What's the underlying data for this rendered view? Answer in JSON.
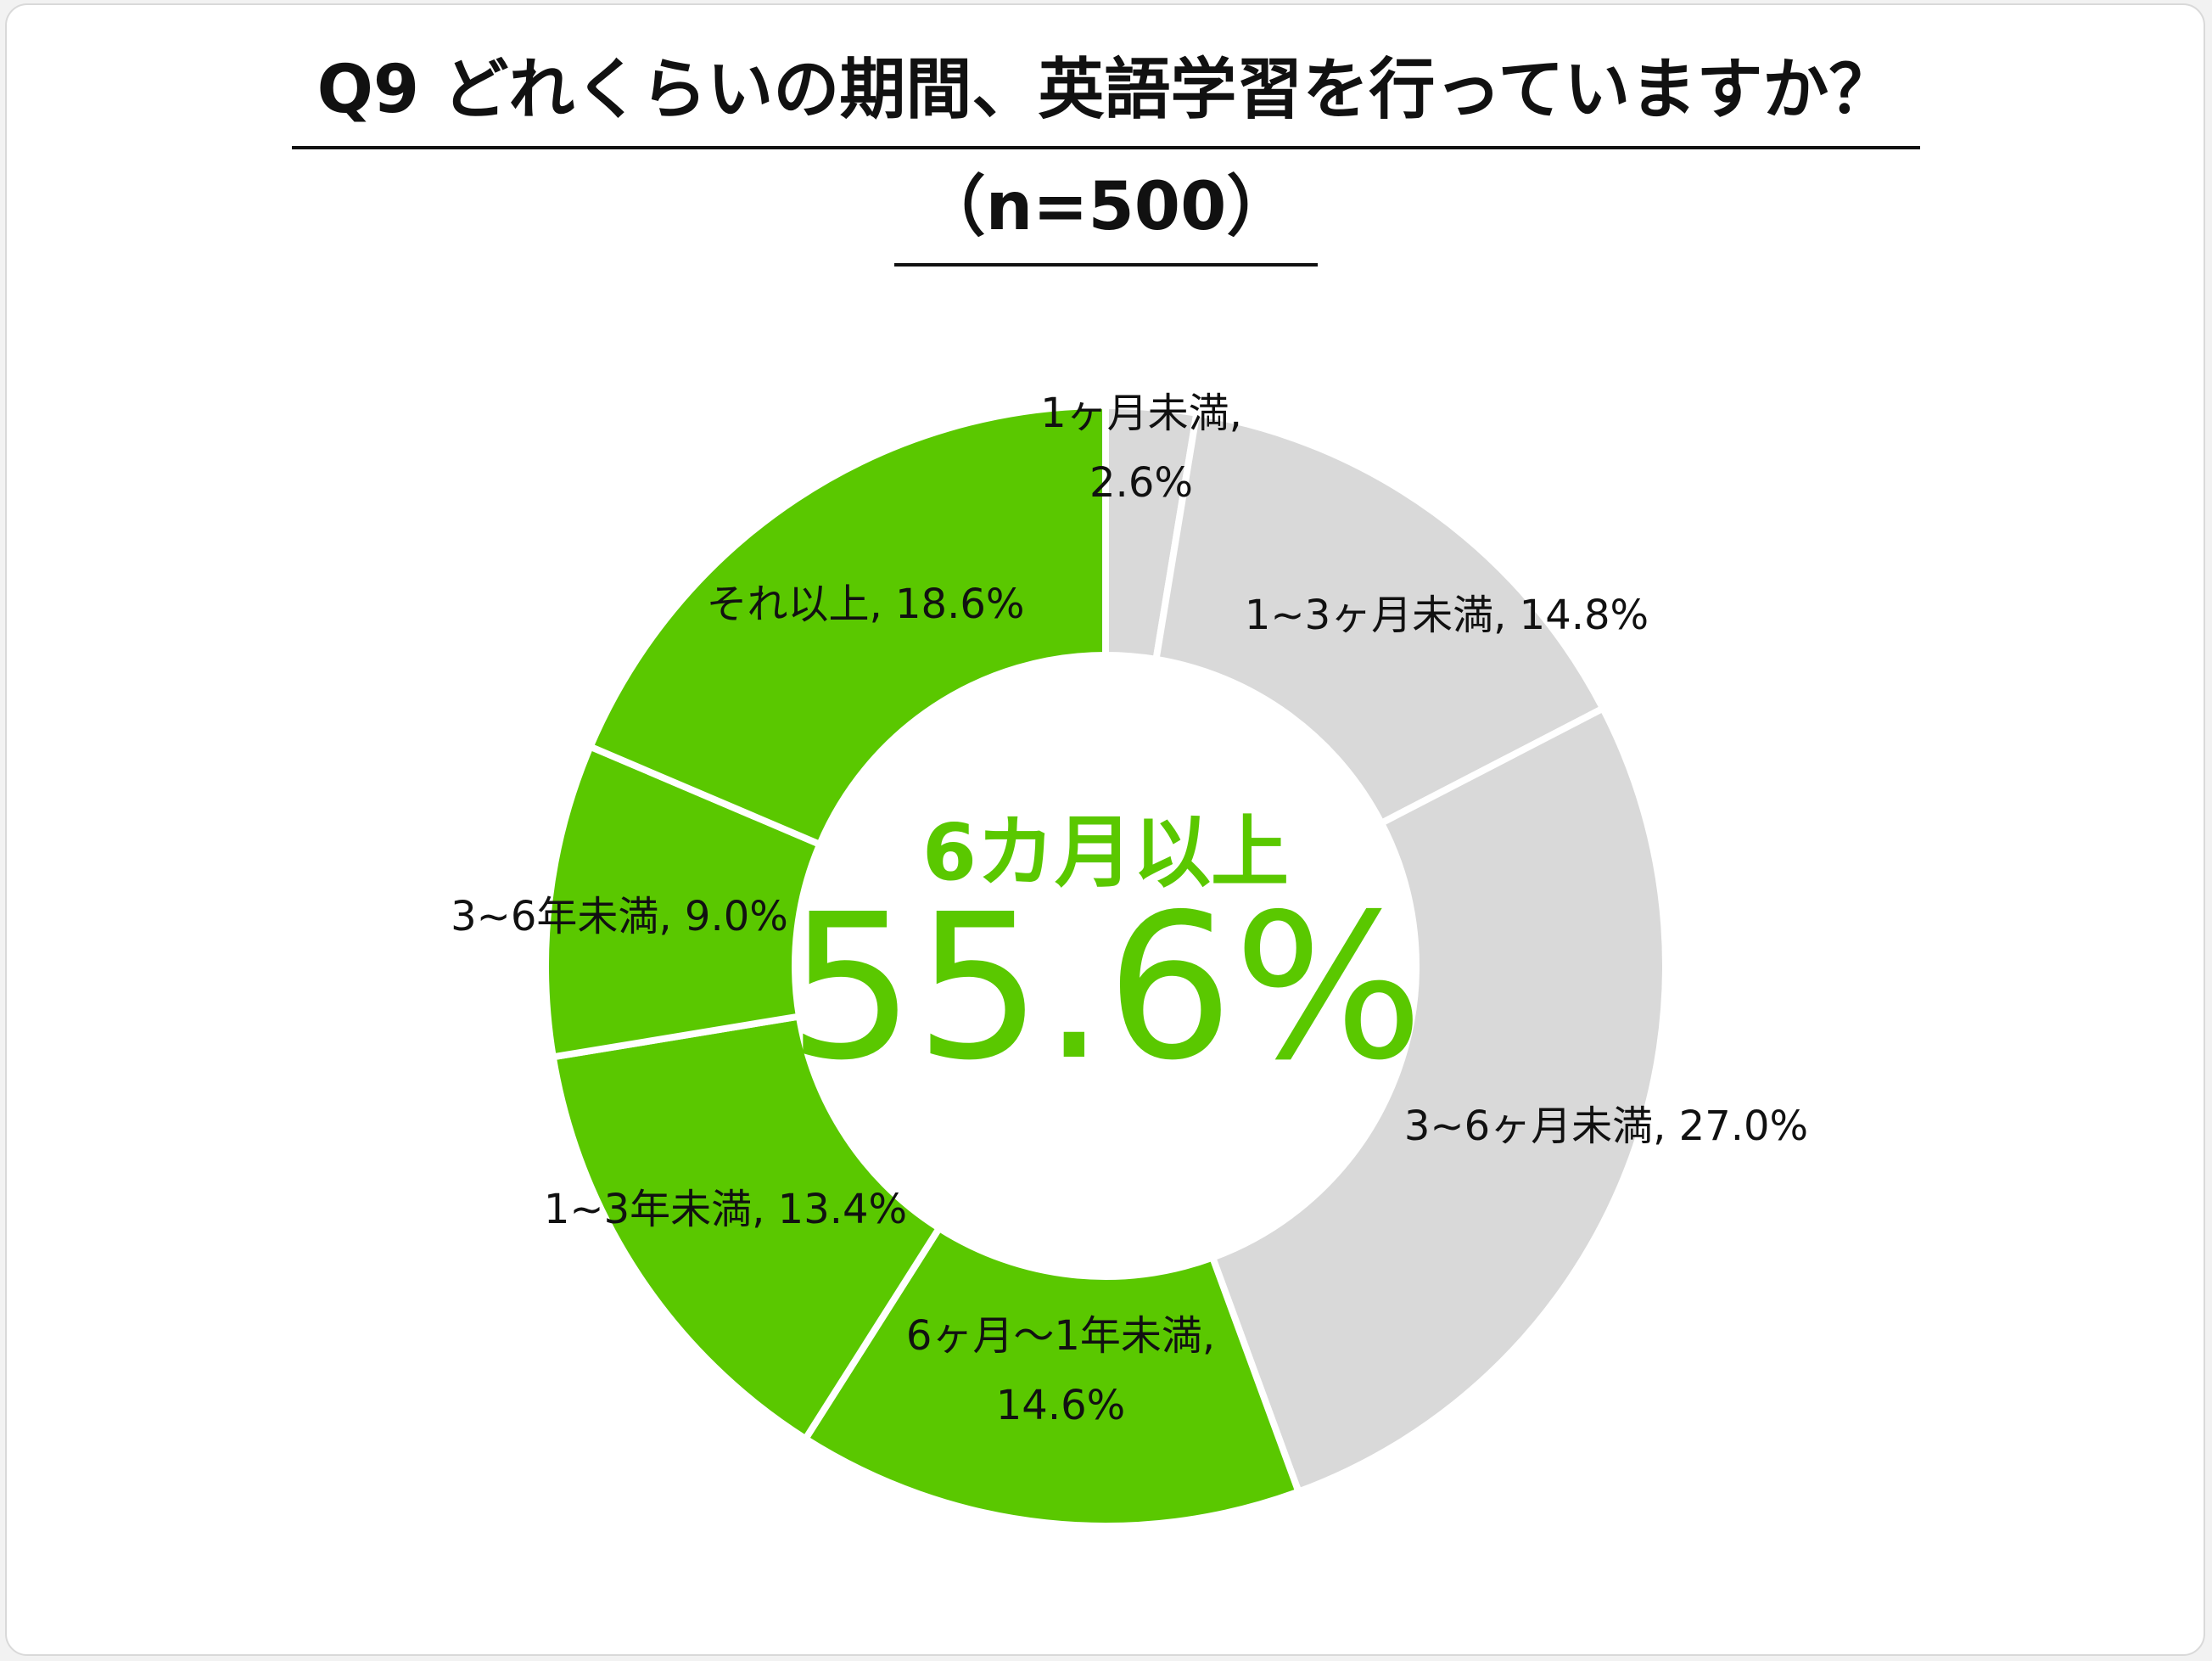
{
  "title_line1": "Q9 どれくらいの期間、英語学習を行っていますか？",
  "title_line2": "（n=500）",
  "center_label": {
    "sub": "6カ月以上",
    "value": "55.6%"
  },
  "colors": {
    "highlight": "#5ac800",
    "muted": "#d9d9d9",
    "separator": "#ffffff"
  },
  "chart_data": {
    "type": "pie",
    "variant": "donut",
    "title": "Q9 どれくらいの期間、英語学習を行っていますか？（n=500）",
    "categories": [
      "1ヶ月未満",
      "1~3ヶ月未満",
      "3~6ヶ月未満",
      "6ヶ月〜1年未満",
      "1~3年未満",
      "3~6年未満",
      "それ以上"
    ],
    "values": [
      2.6,
      14.8,
      27.0,
      14.6,
      13.4,
      9.0,
      18.6
    ],
    "unit": "%",
    "highlighted": [
      false,
      false,
      false,
      true,
      true,
      true,
      true
    ],
    "labels": [
      [
        "1ヶ月未満,",
        "2.6%"
      ],
      [
        "1~3ヶ月未満, 14.8%"
      ],
      [
        "3~6ヶ月未満, 27.0%"
      ],
      [
        "6ヶ月〜1年未満,",
        "14.6%"
      ],
      [
        "1~3年未満, 13.4%"
      ],
      [
        "3~6年未満, 9.0%"
      ],
      [
        "それ以上, 18.6%"
      ]
    ]
  }
}
